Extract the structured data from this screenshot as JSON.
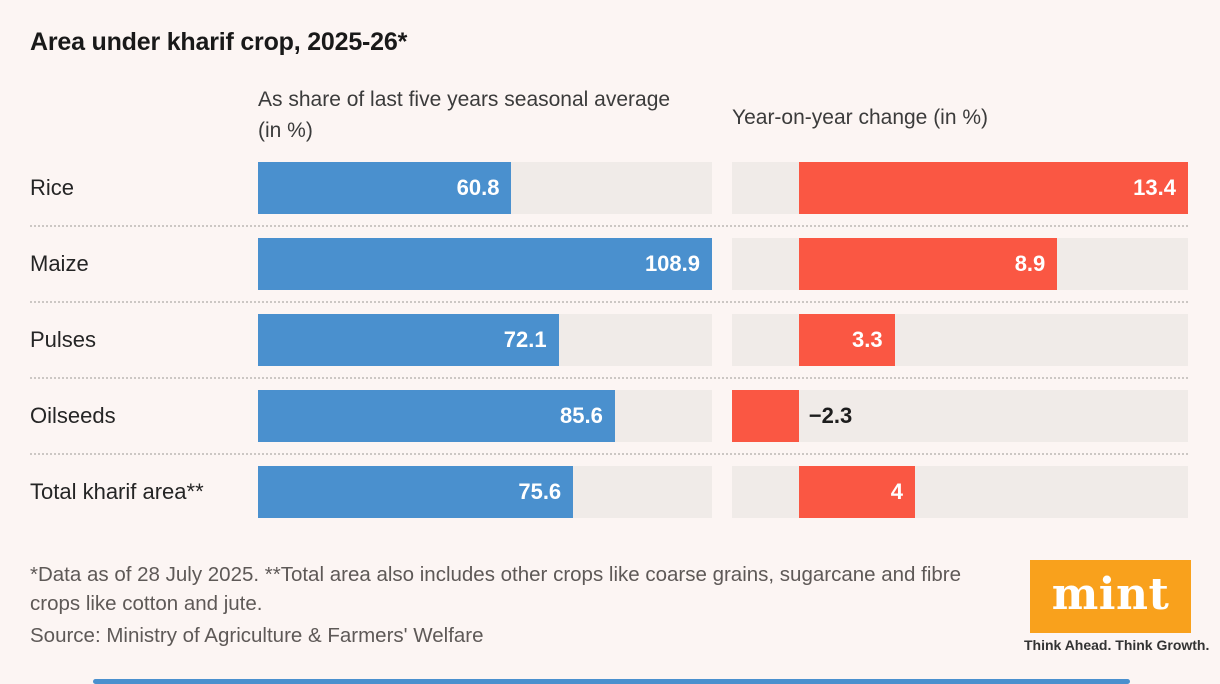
{
  "title": "Area under kharif crop, 2025-26*",
  "columns": {
    "left": "As share of last five years seasonal average (in %)",
    "right": "Year-on-year change (in %)"
  },
  "chart_data": {
    "type": "bar",
    "orientation": "horizontal",
    "title": "Area under kharif crop, 2025-26*",
    "categories": [
      "Rice",
      "Maize",
      "Pulses",
      "Oilseeds",
      "Total kharif area**"
    ],
    "series": [
      {
        "name": "As share of last five years seasonal average (in %)",
        "values": [
          60.8,
          108.9,
          72.1,
          85.6,
          75.6
        ],
        "display_labels": [
          "60.8",
          "108.9",
          "72.1",
          "85.6",
          "75.6"
        ],
        "color": "#4a90ce",
        "xlim": [
          0,
          108.9
        ]
      },
      {
        "name": "Year-on-year change (in %)",
        "values": [
          13.4,
          8.9,
          3.3,
          -2.3,
          4
        ],
        "display_labels": [
          "13.4",
          "8.9",
          "3.3",
          "−2.3",
          "4"
        ],
        "color": "#fa5743",
        "xlim": [
          -2.3,
          13.4
        ]
      }
    ],
    "track_color": "#f0ebe8",
    "grid": false,
    "legend_position": "column-headers"
  },
  "footnote": "*Data as of 28 July 2025. **Total area also includes other crops like coarse grains, sugarcane and fibre crops like cotton and jute.",
  "source": "Source: Ministry of Agriculture & Farmers' Welfare",
  "branding": {
    "logo_text": "mint",
    "tagline": "Think Ahead. Think Growth.",
    "logo_bg_color": "#f9a11c"
  }
}
